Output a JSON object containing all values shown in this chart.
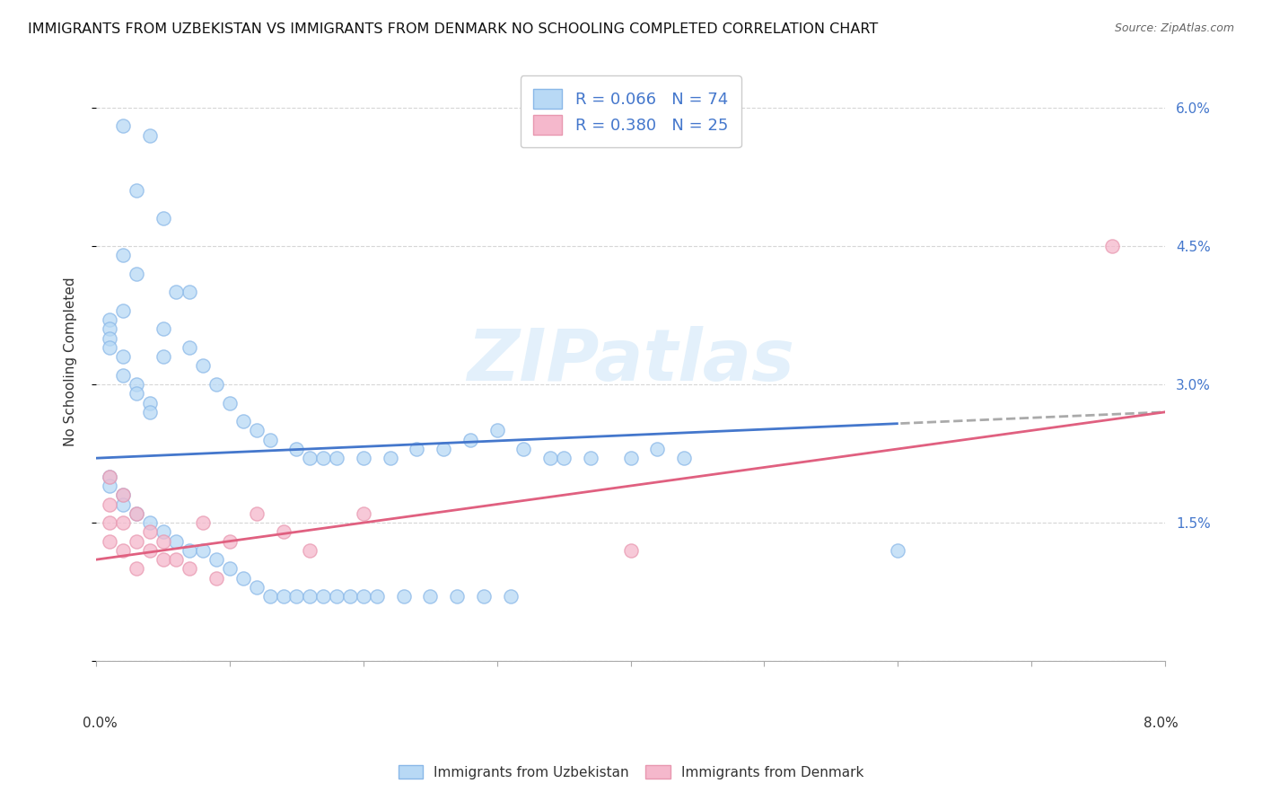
{
  "title": "IMMIGRANTS FROM UZBEKISTAN VS IMMIGRANTS FROM DENMARK NO SCHOOLING COMPLETED CORRELATION CHART",
  "source": "Source: ZipAtlas.com",
  "ylabel": "No Schooling Completed",
  "xlim": [
    0.0,
    0.08
  ],
  "ylim": [
    0.0,
    0.065
  ],
  "yticks": [
    0.0,
    0.015,
    0.03,
    0.045,
    0.06
  ],
  "ytick_labels": [
    "",
    "1.5%",
    "3.0%",
    "4.5%",
    "6.0%"
  ],
  "blue_line_start_y": 0.022,
  "blue_line_end_y": 0.027,
  "pink_line_start_y": 0.011,
  "pink_line_end_y": 0.027,
  "blue_scatter_color": "#b8d9f5",
  "blue_scatter_edge": "#8ab8e8",
  "pink_scatter_color": "#f5b8cc",
  "pink_scatter_edge": "#e898b0",
  "line_blue": "#4477cc",
  "line_pink": "#e06080",
  "line_dash_gray": "#aaaaaa",
  "title_fontsize": 11.5,
  "source_fontsize": 9,
  "tick_label_fontsize": 11,
  "legend_fontsize": 13,
  "ylabel_fontsize": 11,
  "watermark_text": "ZIPatlas",
  "legend1_text": "R = 0.066   N = 74",
  "legend2_text": "R = 0.380   N = 25",
  "bottom_legend1": "Immigrants from Uzbekistan",
  "bottom_legend2": "Immigrants from Denmark",
  "uz_x": [
    0.002,
    0.004,
    0.003,
    0.005,
    0.002,
    0.003,
    0.007,
    0.002,
    0.001,
    0.001,
    0.001,
    0.001,
    0.002,
    0.002,
    0.003,
    0.003,
    0.004,
    0.004,
    0.005,
    0.005,
    0.006,
    0.007,
    0.008,
    0.009,
    0.01,
    0.011,
    0.012,
    0.013,
    0.015,
    0.016,
    0.017,
    0.018,
    0.02,
    0.022,
    0.024,
    0.026,
    0.028,
    0.03,
    0.032,
    0.034,
    0.035,
    0.037,
    0.04,
    0.042,
    0.044,
    0.001,
    0.001,
    0.002,
    0.002,
    0.003,
    0.004,
    0.005,
    0.006,
    0.007,
    0.008,
    0.009,
    0.01,
    0.011,
    0.012,
    0.013,
    0.014,
    0.015,
    0.016,
    0.017,
    0.018,
    0.019,
    0.02,
    0.021,
    0.023,
    0.025,
    0.027,
    0.029,
    0.031,
    0.06
  ],
  "uz_y": [
    0.058,
    0.057,
    0.051,
    0.048,
    0.044,
    0.042,
    0.04,
    0.038,
    0.037,
    0.036,
    0.035,
    0.034,
    0.033,
    0.031,
    0.03,
    0.029,
    0.028,
    0.027,
    0.036,
    0.033,
    0.04,
    0.034,
    0.032,
    0.03,
    0.028,
    0.026,
    0.025,
    0.024,
    0.023,
    0.022,
    0.022,
    0.022,
    0.022,
    0.022,
    0.023,
    0.023,
    0.024,
    0.025,
    0.023,
    0.022,
    0.022,
    0.022,
    0.022,
    0.023,
    0.022,
    0.02,
    0.019,
    0.018,
    0.017,
    0.016,
    0.015,
    0.014,
    0.013,
    0.012,
    0.012,
    0.011,
    0.01,
    0.009,
    0.008,
    0.007,
    0.007,
    0.007,
    0.007,
    0.007,
    0.007,
    0.007,
    0.007,
    0.007,
    0.007,
    0.007,
    0.007,
    0.007,
    0.007,
    0.012
  ],
  "dk_x": [
    0.001,
    0.001,
    0.001,
    0.001,
    0.002,
    0.002,
    0.002,
    0.003,
    0.003,
    0.003,
    0.004,
    0.004,
    0.005,
    0.005,
    0.006,
    0.007,
    0.008,
    0.009,
    0.01,
    0.012,
    0.014,
    0.016,
    0.02,
    0.04,
    0.076
  ],
  "dk_y": [
    0.02,
    0.017,
    0.015,
    0.013,
    0.018,
    0.015,
    0.012,
    0.016,
    0.013,
    0.01,
    0.014,
    0.012,
    0.013,
    0.011,
    0.011,
    0.01,
    0.015,
    0.009,
    0.013,
    0.016,
    0.014,
    0.012,
    0.016,
    0.012,
    0.045
  ]
}
